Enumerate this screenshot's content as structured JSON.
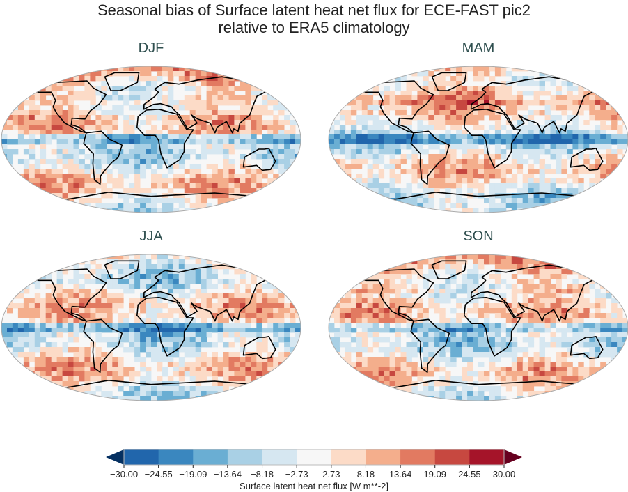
{
  "figure": {
    "title_line1": "Seasonal bias of Surface latent heat net flux for ECE-FAST pic2",
    "title_line2": "relative to ERA5 climatology"
  },
  "panels": [
    {
      "label": "DJF"
    },
    {
      "label": "MAM"
    },
    {
      "label": "JJA"
    },
    {
      "label": "SON"
    }
  ],
  "colorbar": {
    "label": "Surface latent heat net flux [W m**-2]",
    "ticks": [
      "−30.00",
      "−24.55",
      "−19.09",
      "−13.64",
      "−8.18",
      "−2.73",
      "2.73",
      "8.18",
      "13.64",
      "19.09",
      "24.55",
      "30.00"
    ],
    "range": [
      -30,
      30
    ],
    "extend": "both",
    "under_color": "#053061",
    "over_color": "#67001f",
    "colors": [
      "#2166ac",
      "#3a87bf",
      "#6aaed3",
      "#a9d0e5",
      "#d6e7f1",
      "#f7f7f7",
      "#fcdbc7",
      "#f4ae8c",
      "#e27a61",
      "#c74840",
      "#a51429"
    ]
  },
  "chart_data": {
    "type": "heatmap",
    "projection": "Robinson",
    "title": "Seasonal bias of Surface latent heat net flux for ECE-FAST pic2 relative to ERA5 climatology",
    "panels": [
      "DJF",
      "MAM",
      "JJA",
      "SON"
    ],
    "colorbar_label": "Surface latent heat net flux [W m**-2]",
    "levels": [
      -30.0,
      -24.55,
      -19.09,
      -13.64,
      -8.18,
      -2.73,
      2.73,
      8.18,
      13.64,
      19.09,
      24.55,
      30.0
    ]
  }
}
